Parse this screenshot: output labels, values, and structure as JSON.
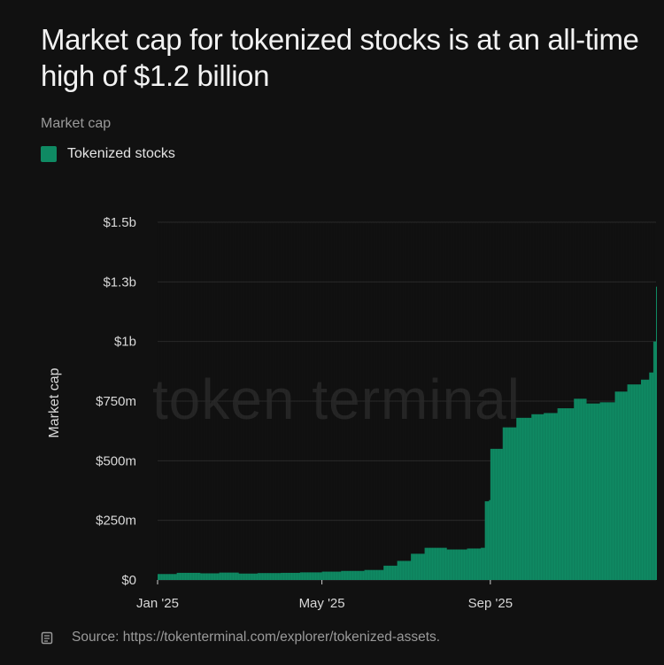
{
  "header": {
    "title": "Market cap for tokenized stocks is at an all-time high of $1.2 billion",
    "subtitle": "Market cap"
  },
  "legend": {
    "label": "Tokenized stocks",
    "color": "#0f8a63"
  },
  "watermark": "token terminal",
  "footer": {
    "icon": "document-icon",
    "source": "Source: https://tokenterminal.com/explorer/tokenized-assets."
  },
  "chart_data": {
    "type": "bar",
    "ylabel": "Market cap",
    "ylim": [
      0,
      1500000000
    ],
    "yticks": [
      {
        "value": 0,
        "label": "$0"
      },
      {
        "value": 250000000,
        "label": "$250m"
      },
      {
        "value": 500000000,
        "label": "$500m"
      },
      {
        "value": 750000000,
        "label": "$750m"
      },
      {
        "value": 1000000000,
        "label": "$1b"
      },
      {
        "value": 1250000000,
        "label": "$1.3b"
      },
      {
        "value": 1500000000,
        "label": "$1.5b"
      }
    ],
    "xticks": [
      {
        "date": "2025-01-01",
        "label": "Jan '25"
      },
      {
        "date": "2025-05-01",
        "label": "May '25"
      },
      {
        "date": "2025-09-01",
        "label": "Sep '25"
      }
    ],
    "grid": true,
    "series": [
      {
        "name": "Tokenized stocks",
        "color": "#0f8a63",
        "points": [
          {
            "date": "2025-01-01",
            "value": 25000000
          },
          {
            "date": "2025-01-15",
            "value": 30000000
          },
          {
            "date": "2025-02-01",
            "value": 28000000
          },
          {
            "date": "2025-02-15",
            "value": 31000000
          },
          {
            "date": "2025-03-01",
            "value": 27000000
          },
          {
            "date": "2025-03-15",
            "value": 29000000
          },
          {
            "date": "2025-04-01",
            "value": 30000000
          },
          {
            "date": "2025-04-15",
            "value": 32000000
          },
          {
            "date": "2025-05-01",
            "value": 35000000
          },
          {
            "date": "2025-05-15",
            "value": 38000000
          },
          {
            "date": "2025-06-01",
            "value": 42000000
          },
          {
            "date": "2025-06-15",
            "value": 60000000
          },
          {
            "date": "2025-06-25",
            "value": 80000000
          },
          {
            "date": "2025-07-05",
            "value": 110000000
          },
          {
            "date": "2025-07-15",
            "value": 135000000
          },
          {
            "date": "2025-07-31",
            "value": 128000000
          },
          {
            "date": "2025-08-15",
            "value": 132000000
          },
          {
            "date": "2025-08-25",
            "value": 135000000
          },
          {
            "date": "2025-08-28",
            "value": 330000000
          },
          {
            "date": "2025-08-31",
            "value": 335000000
          },
          {
            "date": "2025-09-01",
            "value": 550000000
          },
          {
            "date": "2025-09-10",
            "value": 640000000
          },
          {
            "date": "2025-09-20",
            "value": 680000000
          },
          {
            "date": "2025-10-01",
            "value": 695000000
          },
          {
            "date": "2025-10-10",
            "value": 700000000
          },
          {
            "date": "2025-10-20",
            "value": 720000000
          },
          {
            "date": "2025-11-01",
            "value": 760000000
          },
          {
            "date": "2025-11-10",
            "value": 740000000
          },
          {
            "date": "2025-11-20",
            "value": 745000000
          },
          {
            "date": "2025-12-01",
            "value": 790000000
          },
          {
            "date": "2025-12-10",
            "value": 820000000
          },
          {
            "date": "2025-12-20",
            "value": 840000000
          },
          {
            "date": "2025-12-26",
            "value": 870000000
          },
          {
            "date": "2025-12-29",
            "value": 1000000000
          },
          {
            "date": "2025-12-31",
            "value": 1230000000
          }
        ]
      }
    ]
  }
}
